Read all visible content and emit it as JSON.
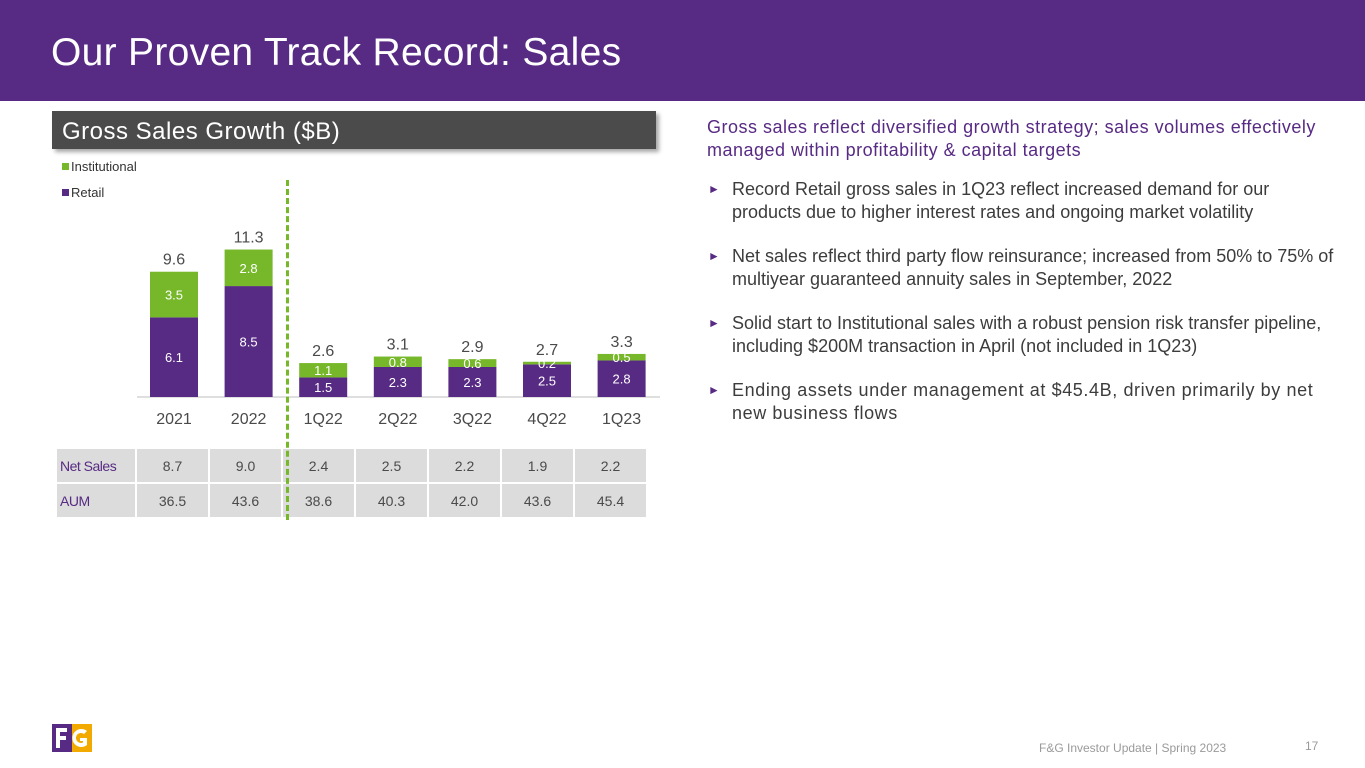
{
  "header": {
    "title": "Our Proven Track Record:  Sales"
  },
  "section": {
    "title": "Gross Sales Growth ($B)"
  },
  "colors": {
    "brand": "#572a84",
    "accent": "#76b82a",
    "section_bg": "#4b4b4b"
  },
  "chart_data": {
    "type": "bar",
    "stacked": true,
    "title": "Gross Sales Growth ($B)",
    "categories": [
      "2021",
      "2022",
      "1Q22",
      "2Q22",
      "3Q22",
      "4Q22",
      "1Q23"
    ],
    "series": [
      {
        "name": "Retail",
        "color": "#572a84",
        "values": [
          6.1,
          8.5,
          1.5,
          2.3,
          2.3,
          2.5,
          2.8
        ],
        "labels": [
          "6.1",
          "8.5",
          "1.5",
          "2.3",
          "2.3",
          "2.5",
          "2.8"
        ]
      },
      {
        "name": "Institutional",
        "color": "#76b82a",
        "values": [
          3.5,
          2.8,
          1.1,
          0.8,
          0.6,
          0.2,
          0.5
        ],
        "labels": [
          "3.5",
          "2.8",
          "1.1",
          "0.8",
          "0.6",
          "0.2",
          "0.5"
        ]
      }
    ],
    "totals": [
      "9.6",
      "11.3",
      "2.6",
      "3.1",
      "2.9",
      "2.7",
      "3.3"
    ],
    "ylim": [
      0,
      11.3
    ],
    "grid": false,
    "legend": [
      "Institutional",
      "Retail"
    ],
    "legend_position": "top-left",
    "xlabel": "",
    "ylabel": ""
  },
  "table": {
    "rows": [
      {
        "label": "Net Sales",
        "values": [
          "8.7",
          "9.0",
          "2.4",
          "2.5",
          "2.2",
          "1.9",
          "2.2"
        ]
      },
      {
        "label": "AUM",
        "values": [
          "36.5",
          "43.6",
          "38.6",
          "40.3",
          "42.0",
          "43.6",
          "45.4"
        ]
      }
    ]
  },
  "commentary": {
    "summary": "Gross sales reflect diversified growth strategy; sales volumes effectively managed within profitability & capital targets",
    "bullet_marker": "►",
    "bullets": [
      "Record Retail gross sales in 1Q23 reflect increased demand for our products due to higher interest rates and ongoing market volatility",
      "Net sales reflect third party flow reinsurance; increased from 50% to 75% of multiyear guaranteed annuity sales in September, 2022",
      "Solid start to Institutional sales with a robust pension risk transfer pipeline, including $200M transaction in April (not included in 1Q23)",
      "Ending assets under management at $45.4B, driven primarily by net new business flows"
    ]
  },
  "footer": {
    "text": "F&G Investor Update | Spring 2023",
    "page": "17"
  }
}
